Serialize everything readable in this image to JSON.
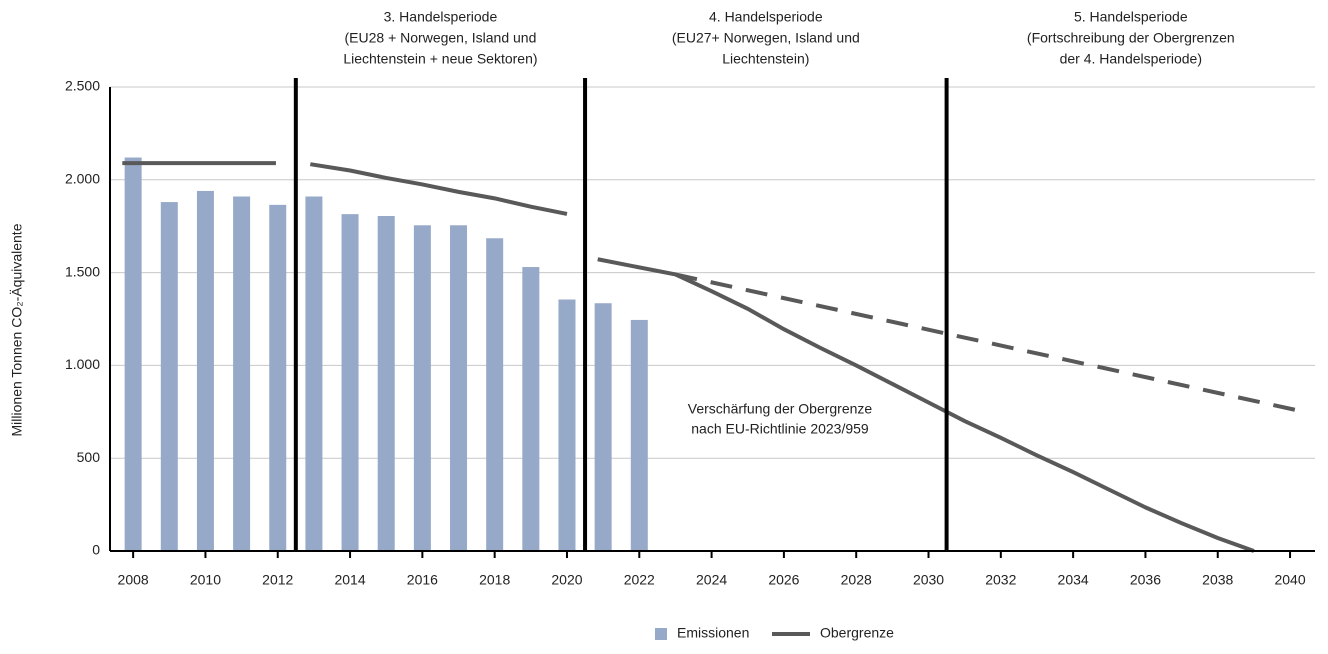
{
  "chart_data": {
    "type": "bar",
    "ylabel": "Millionen Tonnen CO₂-Äquivalente",
    "xlim": [
      2007.36,
      2040.69
    ],
    "ylim": [
      0,
      2500
    ],
    "xticks": [
      2008,
      2010,
      2012,
      2014,
      2016,
      2018,
      2020,
      2022,
      2024,
      2026,
      2028,
      2030,
      2032,
      2034,
      2036,
      2038,
      2040
    ],
    "yticks": [
      0,
      500,
      {
        "value": 1000,
        "label": "1.000"
      },
      {
        "value": 1500,
        "label": "1.500"
      },
      {
        "value": 2000,
        "label": "2.000"
      },
      {
        "value": 2500,
        "label": "2.500"
      }
    ],
    "grid": true,
    "dividers": [
      2012.5,
      2020.5,
      2030.5
    ],
    "periods": [
      {
        "lines": [
          "3. Handelsperiode",
          "(EU28 + Norwegen, Island und",
          "Liechtenstein + neue Sektoren)"
        ]
      },
      {
        "lines": [
          "4. Handelsperiode",
          "(EU27+ Norwegen, Island und",
          "Liechtenstein)"
        ]
      },
      {
        "lines": [
          "5. Handelsperiode",
          "(Fortschreibung der Obergrenzen",
          "der 4. Handelsperiode)"
        ]
      }
    ],
    "note": [
      "Verschärfung der Obergrenze",
      "nach EU-Richtlinie 2023/959"
    ],
    "series": [
      {
        "name": "Emissionen",
        "type": "bar",
        "color": "#97a9c9",
        "x": [
          2008,
          2009,
          2010,
          2011,
          2012,
          2013,
          2014,
          2015,
          2016,
          2017,
          2018,
          2019,
          2020,
          2021,
          2022
        ],
        "values": [
          2120,
          1880,
          1940,
          1910,
          1865,
          1910,
          1815,
          1805,
          1755,
          1755,
          1685,
          1530,
          1355,
          1335,
          1245
        ]
      },
      {
        "name": "Obergrenze",
        "type": "line",
        "color": "#595959",
        "x": [
          2007.7,
          2011.95,
          2012.4,
          2012.9,
          2014,
          2015,
          2016,
          2017,
          2018,
          2019,
          2020,
          2020.4,
          2020.85,
          2023,
          2024,
          2025,
          2026,
          2027,
          2028,
          2029,
          2030,
          2031,
          2032,
          2033,
          2034,
          2035,
          2036,
          2037,
          2038,
          2039
        ],
        "values": [
          2090,
          2090,
          null,
          2084,
          2050,
          2010,
          1975,
          1935,
          1900,
          1855,
          1816,
          null,
          1572,
          1490,
          1400,
          1305,
          1195,
          1095,
          1000,
          900,
          800,
          700,
          610,
          515,
          425,
          330,
          235,
          150,
          70,
          0
        ]
      },
      {
        "type": "line",
        "dashed": true,
        "color": "#595959",
        "x": [
          2023,
          2040.3
        ],
        "values": [
          1490,
          754
        ]
      }
    ]
  }
}
